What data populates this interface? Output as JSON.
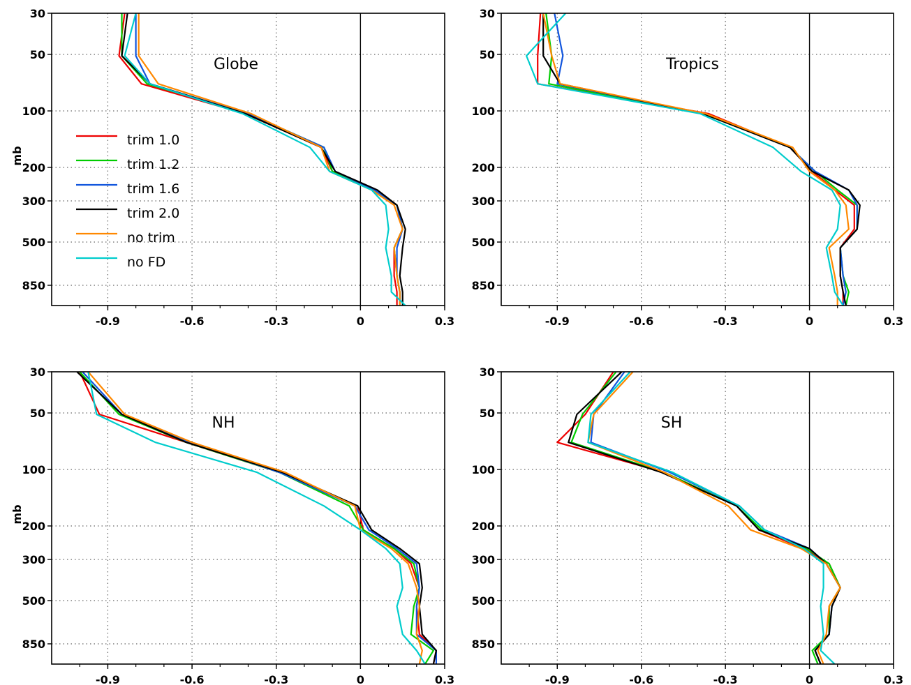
{
  "chart_data": [
    {
      "type": "line",
      "title": "Globe",
      "ylabel": "mb",
      "xlim": [
        -1.1,
        0.3
      ],
      "xticks": [
        "-0.9",
        "-0.6",
        "-0.3",
        "0",
        "0.3"
      ],
      "yticks": [
        "30",
        "50",
        "100",
        "200",
        "300",
        "500",
        "850"
      ],
      "y_scale": "log (pressure, increasing downward)",
      "levels": [
        30,
        50,
        70,
        100,
        150,
        200,
        250,
        300,
        400,
        500,
        700,
        850,
        1000
      ],
      "series": [
        {
          "name": "trim 1.0",
          "color": "#ee0000",
          "x": [
            -0.84,
            -0.86,
            -0.78,
            -0.41,
            -0.14,
            -0.1,
            0.05,
            0.13,
            0.15,
            0.12,
            0.12,
            0.13,
            0.13
          ]
        },
        {
          "name": "trim 1.2",
          "color": "#00cc00",
          "x": [
            -0.85,
            -0.85,
            -0.76,
            -0.4,
            -0.13,
            -0.1,
            0.05,
            0.13,
            0.15,
            0.12,
            0.13,
            0.14,
            0.14
          ]
        },
        {
          "name": "trim 1.6",
          "color": "#1155dd",
          "x": [
            -0.8,
            -0.8,
            -0.75,
            -0.4,
            -0.13,
            -0.09,
            0.05,
            0.13,
            0.15,
            0.13,
            0.13,
            0.14,
            0.14
          ]
        },
        {
          "name": "trim 2.0",
          "color": "#000000",
          "x": [
            -0.83,
            -0.85,
            -0.75,
            -0.41,
            -0.14,
            -0.09,
            0.06,
            0.13,
            0.16,
            0.15,
            0.14,
            0.15,
            0.15
          ]
        },
        {
          "name": "no trim",
          "color": "#ff8800",
          "x": [
            -0.79,
            -0.79,
            -0.72,
            -0.39,
            -0.14,
            -0.11,
            0.04,
            0.12,
            0.15,
            0.12,
            0.13,
            0.14,
            0.14
          ]
        },
        {
          "name": "no FD",
          "color": "#00cccc",
          "x": [
            -0.8,
            -0.84,
            -0.75,
            -0.42,
            -0.18,
            -0.11,
            0.04,
            0.09,
            0.1,
            0.09,
            0.11,
            0.11,
            0.16
          ]
        }
      ]
    },
    {
      "type": "line",
      "title": "Tropics",
      "ylabel": "",
      "xlim": [
        -1.1,
        0.3
      ],
      "xticks": [
        "-0.9",
        "-0.6",
        "-0.3",
        "0",
        "0.3"
      ],
      "yticks": [
        "30",
        "50",
        "100",
        "200",
        "300",
        "500",
        "850"
      ],
      "y_scale": "log (pressure, increasing downward)",
      "levels": [
        30,
        50,
        70,
        100,
        150,
        200,
        250,
        300,
        400,
        500,
        700,
        850,
        1000
      ],
      "series": [
        {
          "name": "trim 1.0",
          "color": "#ee0000",
          "x": [
            -0.96,
            -0.97,
            -0.97,
            -0.36,
            -0.07,
            0.01,
            0.09,
            0.16,
            0.16,
            0.11,
            0.11,
            0.12,
            0.12
          ]
        },
        {
          "name": "trim 1.2",
          "color": "#00cc00",
          "x": [
            -0.94,
            -0.92,
            -0.93,
            -0.38,
            -0.07,
            0.02,
            0.1,
            0.17,
            0.17,
            0.11,
            0.12,
            0.14,
            0.13
          ]
        },
        {
          "name": "trim 1.6",
          "color": "#1155dd",
          "x": [
            -0.91,
            -0.88,
            -0.9,
            -0.38,
            -0.07,
            0.02,
            0.14,
            0.17,
            0.17,
            0.11,
            0.12,
            0.13,
            0.12
          ]
        },
        {
          "name": "trim 2.0",
          "color": "#000000",
          "x": [
            -0.95,
            -0.95,
            -0.89,
            -0.38,
            -0.07,
            0.01,
            0.14,
            0.18,
            0.17,
            0.11,
            0.11,
            0.12,
            0.13
          ]
        },
        {
          "name": "no trim",
          "color": "#ff8800",
          "x": [
            -0.95,
            -0.92,
            -0.89,
            -0.37,
            -0.06,
            0.0,
            0.09,
            0.13,
            0.14,
            0.07,
            0.09,
            0.1,
            0.1
          ]
        },
        {
          "name": "no FD",
          "color": "#00cccc",
          "x": [
            -0.87,
            -1.01,
            -0.97,
            -0.39,
            -0.13,
            -0.03,
            0.08,
            0.11,
            0.1,
            0.06,
            0.08,
            0.09,
            0.12
          ]
        }
      ]
    },
    {
      "type": "line",
      "title": "NH",
      "ylabel": "mb",
      "xlim": [
        -1.1,
        0.3
      ],
      "xticks": [
        "-0.9",
        "-0.6",
        "-0.3",
        "0",
        "0.3"
      ],
      "yticks": [
        "30",
        "50",
        "100",
        "200",
        "300",
        "500",
        "850"
      ],
      "y_scale": "log (pressure, increasing downward)",
      "levels": [
        30,
        50,
        70,
        100,
        150,
        200,
        250,
        300,
        400,
        500,
        700,
        850,
        1000
      ],
      "series": [
        {
          "name": "trim 1.0",
          "color": "#ee0000",
          "x": [
            -1.0,
            -0.93,
            -0.62,
            -0.29,
            -0.01,
            0.01,
            0.12,
            0.18,
            0.21,
            0.2,
            0.21,
            0.27,
            0.26
          ]
        },
        {
          "name": "trim 1.2",
          "color": "#00cc00",
          "x": [
            -1.0,
            -0.86,
            -0.62,
            -0.29,
            -0.04,
            0.01,
            0.12,
            0.19,
            0.21,
            0.19,
            0.18,
            0.26,
            0.23
          ]
        },
        {
          "name": "trim 1.6",
          "color": "#1155dd",
          "x": [
            -0.99,
            -0.85,
            -0.61,
            -0.29,
            -0.02,
            0.03,
            0.13,
            0.2,
            0.21,
            0.2,
            0.2,
            0.27,
            0.27
          ]
        },
        {
          "name": "trim 2.0",
          "color": "#000000",
          "x": [
            -1.01,
            -0.85,
            -0.62,
            -0.28,
            -0.01,
            0.04,
            0.14,
            0.21,
            0.22,
            0.21,
            0.22,
            0.27,
            0.26
          ]
        },
        {
          "name": "no trim",
          "color": "#ff8800",
          "x": [
            -0.97,
            -0.84,
            -0.6,
            -0.27,
            -0.02,
            0.0,
            0.11,
            0.17,
            0.2,
            0.21,
            0.2,
            0.22,
            0.21
          ]
        },
        {
          "name": "no FD",
          "color": "#00cccc",
          "x": [
            -0.97,
            -0.94,
            -0.73,
            -0.37,
            -0.13,
            0.0,
            0.09,
            0.14,
            0.15,
            0.13,
            0.15,
            0.2,
            0.23
          ]
        }
      ]
    },
    {
      "type": "line",
      "title": "SH",
      "ylabel": "",
      "xlim": [
        -1.1,
        0.3
      ],
      "xticks": [
        "-0.9",
        "-0.6",
        "-0.3",
        "0",
        "0.3"
      ],
      "yticks": [
        "30",
        "50",
        "100",
        "200",
        "300",
        "500",
        "850"
      ],
      "y_scale": "log (pressure, increasing downward)",
      "levels": [
        30,
        50,
        70,
        100,
        150,
        200,
        250,
        300,
        400,
        500,
        700,
        850,
        1000
      ],
      "series": [
        {
          "name": "trim 1.0",
          "color": "#ee0000",
          "x": [
            -0.7,
            -0.8,
            -0.9,
            -0.52,
            -0.26,
            -0.18,
            -0.02,
            0.07,
            0.11,
            0.07,
            0.07,
            0.02,
            0.04
          ]
        },
        {
          "name": "trim 1.2",
          "color": "#00cc00",
          "x": [
            -0.69,
            -0.81,
            -0.85,
            -0.52,
            -0.26,
            -0.17,
            -0.01,
            0.07,
            0.11,
            0.07,
            0.07,
            0.01,
            0.03
          ]
        },
        {
          "name": "trim 1.6",
          "color": "#1155dd",
          "x": [
            -0.66,
            -0.77,
            -0.78,
            -0.5,
            -0.25,
            -0.16,
            0.0,
            0.06,
            0.11,
            0.08,
            0.07,
            0.02,
            0.04
          ]
        },
        {
          "name": "trim 2.0",
          "color": "#000000",
          "x": [
            -0.67,
            -0.83,
            -0.86,
            -0.53,
            -0.26,
            -0.18,
            0.0,
            0.06,
            0.11,
            0.08,
            0.07,
            0.02,
            0.04
          ]
        },
        {
          "name": "no trim",
          "color": "#ff8800",
          "x": [
            -0.63,
            -0.77,
            -0.79,
            -0.52,
            -0.29,
            -0.21,
            -0.03,
            0.06,
            0.11,
            0.07,
            0.06,
            0.03,
            0.05
          ]
        },
        {
          "name": "no FD",
          "color": "#00cccc",
          "x": [
            -0.64,
            -0.78,
            -0.79,
            -0.49,
            -0.25,
            -0.16,
            -0.02,
            0.05,
            0.05,
            0.04,
            0.05,
            0.04,
            0.09
          ]
        }
      ]
    }
  ]
}
